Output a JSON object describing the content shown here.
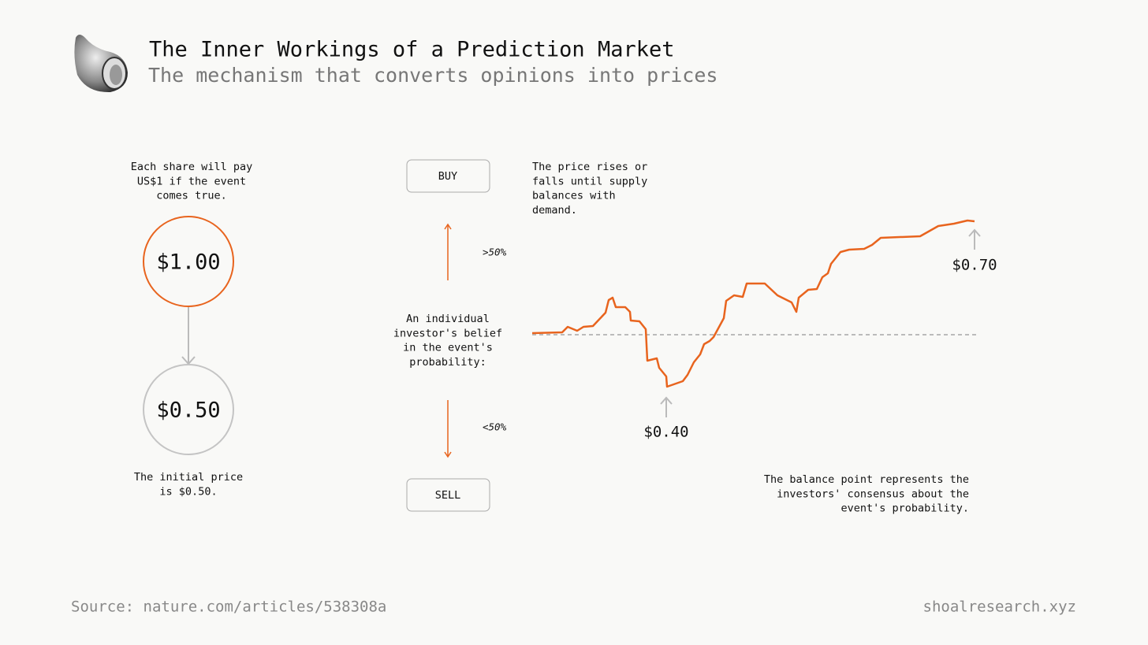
{
  "header": {
    "title": "The Inner Workings of a Prediction Market",
    "subtitle": "The mechanism that converts opinions into prices"
  },
  "left": {
    "top_note": [
      "Each share will pay",
      "US$1 if the event",
      "comes true."
    ],
    "payout": "$1.00",
    "initial": "$0.50",
    "bottom_note": [
      "The initial price",
      "is $0.50."
    ]
  },
  "middle": {
    "buy": "BUY",
    "sell": "SELL",
    "above": ">50%",
    "below": "<50%",
    "belief": [
      "An individual",
      "investor's belief",
      "in the event's",
      "probability:"
    ]
  },
  "right": {
    "top_note": [
      "The price rises or",
      "falls until supply",
      "balances with",
      "demand."
    ],
    "low_label": "$0.40",
    "high_label": "$0.70",
    "bottom_note": [
      "The balance point represents the",
      "investors' consensus about the",
      "event's probability."
    ]
  },
  "footer": {
    "source": "Source: nature.com/articles/538308a",
    "site": "shoalresearch.xyz"
  }
}
